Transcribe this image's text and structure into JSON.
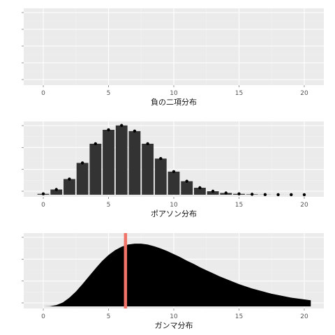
{
  "colors": {
    "panel_bg": "#ebebeb",
    "grid_major": "#ffffff",
    "grid_minor": "#f2f2f2",
    "bar_fill": "#333333",
    "point": "#000000",
    "gamma_fill": "#000000",
    "vline": "#f07368",
    "axis_text": "#555555"
  },
  "chart_data": [
    {
      "type": "bar",
      "xlabel": "負の二項分布",
      "ylabel": "",
      "xlim": [
        -1.5,
        21.5
      ],
      "x_ticks": [
        0,
        5,
        10,
        15,
        20
      ],
      "y_ticks": [
        "",
        "",
        "",
        "",
        ""
      ],
      "categories": [],
      "values": [],
      "grid": true
    },
    {
      "type": "bar",
      "xlabel": "ポアソン分布",
      "ylabel": "",
      "xlim": [
        -1.5,
        21.5
      ],
      "ylim": [
        0,
        0.165
      ],
      "x_ticks": [
        0,
        5,
        10,
        15,
        20
      ],
      "y_ticks": [
        "",
        "",
        "",
        ""
      ],
      "categories": [
        0,
        1,
        2,
        3,
        4,
        5,
        6,
        7,
        8,
        9,
        10,
        11,
        12,
        13,
        14,
        15,
        16,
        17,
        18,
        19,
        20
      ],
      "values": [
        0.002,
        0.012,
        0.036,
        0.073,
        0.117,
        0.149,
        0.159,
        0.146,
        0.117,
        0.083,
        0.053,
        0.031,
        0.016,
        0.008,
        0.004,
        0.002,
        0.001,
        0.0003,
        0.0001,
        3e-05,
        1e-05
      ],
      "points": true,
      "grid": true
    },
    {
      "type": "area",
      "xlabel": "ガンマ分布",
      "ylabel": "",
      "xlim": [
        -1.5,
        21.5
      ],
      "ylim": [
        0,
        0.165
      ],
      "x_ticks": [
        0,
        5,
        10,
        15,
        20
      ],
      "y_ticks": [
        "",
        "",
        "",
        ""
      ],
      "x": [
        -0.5,
        0,
        0.5,
        1,
        1.5,
        2,
        2.5,
        3,
        3.5,
        4,
        4.5,
        5,
        5.5,
        6,
        6.5,
        7,
        7.5,
        8,
        8.5,
        9,
        9.5,
        10,
        10.5,
        11,
        11.5,
        12,
        12.5,
        13,
        13.5,
        14,
        14.5,
        15,
        15.5,
        16,
        16.5,
        17,
        17.5,
        18,
        18.5,
        19,
        19.5,
        20,
        20.5
      ],
      "y": [
        0,
        0,
        0.0004,
        0.003,
        0.009,
        0.02,
        0.034,
        0.051,
        0.069,
        0.087,
        0.104,
        0.118,
        0.129,
        0.137,
        0.142,
        0.144,
        0.144,
        0.142,
        0.138,
        0.133,
        0.127,
        0.12,
        0.113,
        0.105,
        0.098,
        0.09,
        0.083,
        0.076,
        0.069,
        0.063,
        0.057,
        0.051,
        0.046,
        0.041,
        0.037,
        0.033,
        0.029,
        0.026,
        0.023,
        0.02,
        0.018,
        0.016,
        0.014
      ],
      "vline": 6.3,
      "grid": true
    }
  ]
}
